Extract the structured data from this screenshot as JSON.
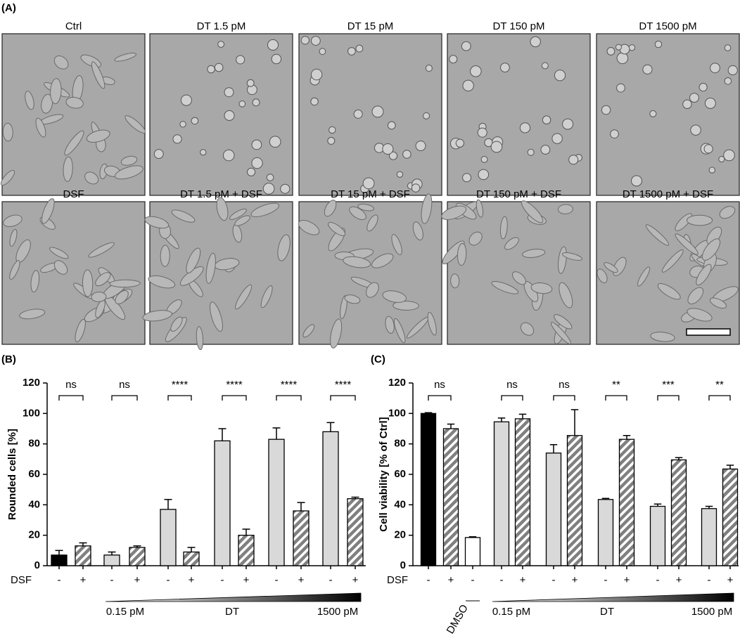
{
  "figure": {
    "panel_label": "(A)",
    "image_titles": [
      "Ctrl",
      "DT 1.5 pM",
      "DT 15 pM",
      "DT 150 pM",
      "DT 1500 pM",
      "DSF",
      "DT 1.5 pM + DSF",
      "DT 15 pM + DSF",
      "DT 150 pM + DSF",
      "DT 1500 pM + DSF"
    ]
  },
  "chart_data": [
    {
      "type": "bar",
      "panel_label": "(B)",
      "ylabel": "Rounded cells [%]",
      "ylim": [
        0,
        120
      ],
      "yticks": [
        0,
        20,
        40,
        60,
        80,
        100,
        120
      ],
      "categories": [
        "-",
        "+",
        "-",
        "+",
        "-",
        "+",
        "-",
        "+",
        "-",
        "+",
        "-",
        "+"
      ],
      "values": [
        7,
        13,
        7,
        12,
        37,
        9,
        82,
        20,
        83,
        36,
        88,
        44
      ],
      "errors": [
        3,
        2,
        2,
        1,
        6.5,
        3,
        8,
        4,
        7.5,
        5.5,
        6,
        1
      ],
      "colors": [
        "#000000",
        "#808080",
        "#d9d9d9",
        "#808080",
        "#d9d9d9",
        "#808080",
        "#d9d9d9",
        "#808080",
        "#d9d9d9",
        "#808080",
        "#d9d9d9",
        "#808080"
      ],
      "hatched": [
        false,
        true,
        false,
        true,
        false,
        true,
        false,
        true,
        false,
        true,
        false,
        true
      ],
      "annotations": [
        "ns",
        "ns",
        "****",
        "****",
        "****",
        "****"
      ],
      "row_label": "DSF",
      "gradient_labels": [
        "0.15 pM",
        "DT",
        "1500 pM"
      ]
    },
    {
      "type": "bar",
      "panel_label": "(C)",
      "ylabel": "Cell viability [% of Ctrl]",
      "ylim": [
        0,
        120
      ],
      "yticks": [
        0,
        20,
        40,
        60,
        80,
        100,
        120
      ],
      "categories": [
        "-",
        "+",
        "-",
        "-",
        "+",
        "-",
        "+",
        "-",
        "+",
        "-",
        "+",
        "-",
        "+"
      ],
      "values": [
        100,
        90,
        18.5,
        94.5,
        96.5,
        74,
        85.5,
        43.5,
        83,
        39,
        69.5,
        37.5,
        63.5
      ],
      "errors": [
        0.5,
        3,
        0.5,
        2.5,
        3,
        5.5,
        17,
        0.7,
        2.5,
        1.5,
        1.5,
        1.5,
        2.5
      ],
      "colors": [
        "#000000",
        "#808080",
        "#ffffff",
        "#d9d9d9",
        "#808080",
        "#d9d9d9",
        "#808080",
        "#d9d9d9",
        "#808080",
        "#d9d9d9",
        "#808080",
        "#d9d9d9",
        "#808080"
      ],
      "hatched": [
        false,
        true,
        false,
        false,
        true,
        false,
        true,
        false,
        true,
        false,
        true,
        false,
        true
      ],
      "annotations": [
        "ns",
        "ns",
        "ns",
        "**",
        "***",
        "**"
      ],
      "row_label": "DSF",
      "extra_label": "DMSO",
      "gradient_labels": [
        "0.15 pM",
        "DT",
        "1500 pM"
      ]
    }
  ]
}
